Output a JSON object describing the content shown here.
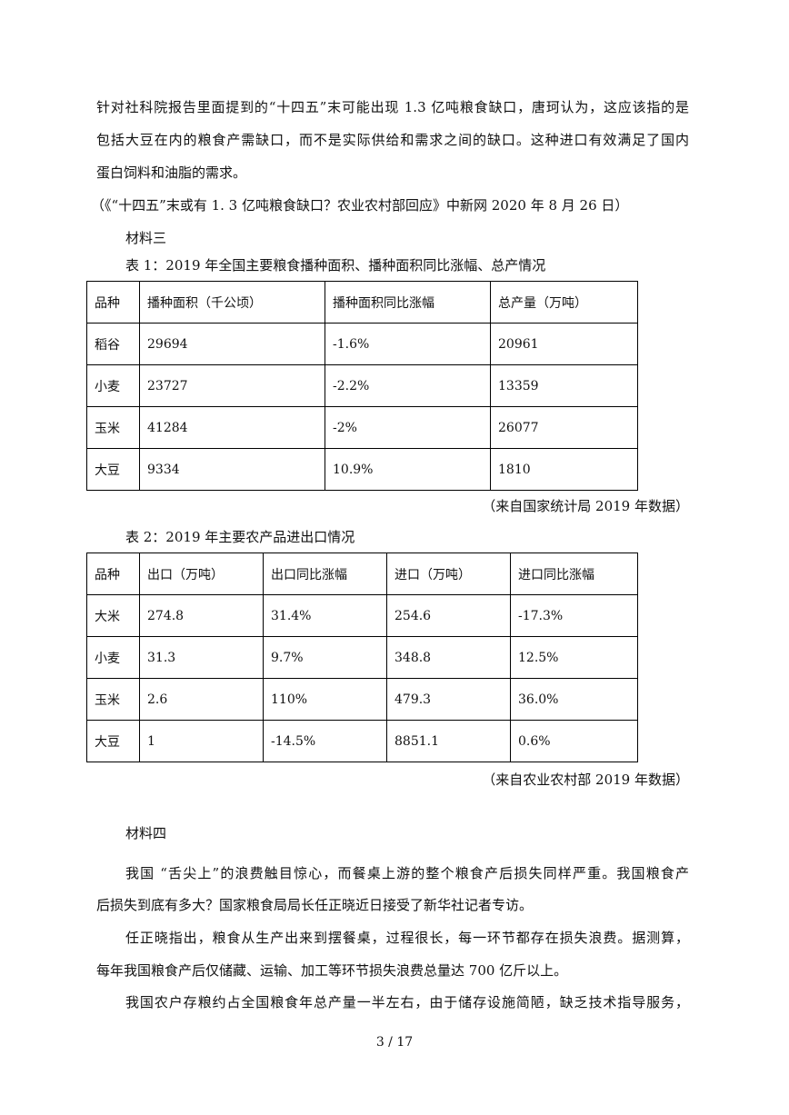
{
  "material2": {
    "lines": [
      "针对社科院报告里面提到的“十四五”末可能出现 1.3 亿吨粮食缺口，唐珂认为，这应该指的是",
      "包括大豆在内的粮食产需缺口，而不是实际供给和需求之间的缺口。这种进口有效满足了国内",
      "蛋白饲料和油脂的需求。"
    ],
    "citation": "（《“十四五”末或有 1. 3 亿吨粮食缺口？农业农村部回应》中新网 2020 年 8 月 26 日）"
  },
  "material3": {
    "heading": "材料三",
    "table1": {
      "caption": "表 1：2019 年全国主要粮食播种面积、播种面积同比涨幅、总产情况",
      "headers": [
        "品种",
        "播种面积（千公顷）",
        "播种面积同比涨幅",
        "总产量（万吨）"
      ],
      "rows": [
        [
          "稻谷",
          "29694",
          "-1.6%",
          "20961"
        ],
        [
          "小麦",
          "23727",
          "-2.2%",
          "13359"
        ],
        [
          "玉米",
          "41284",
          "-2%",
          "26077"
        ],
        [
          "大豆",
          "9334",
          "10.9%",
          "1810"
        ]
      ],
      "source": "（来自国家统计局 2019 年数据）"
    },
    "table2": {
      "caption": "表 2：2019  年主要农产品进出口情况",
      "headers": [
        "品种",
        "出口（万吨）",
        "出口同比涨幅",
        "进口（万吨）",
        "进口同比涨幅"
      ],
      "rows": [
        [
          "大米",
          "274.8",
          "31.4%",
          "254.6",
          "-17.3%"
        ],
        [
          "小麦",
          "31.3",
          "9.7%",
          "348.8",
          "12.5%"
        ],
        [
          "玉米",
          "2.6",
          "110%",
          "479.3",
          "36.0%"
        ],
        [
          "大豆",
          "1",
          "-14.5%",
          "8851.1",
          "0.6%"
        ]
      ],
      "source": "（来自农业农村部 2019 年数据）"
    }
  },
  "material4": {
    "heading": "材料四",
    "lines": [
      "我国 “舌尖上”的浪费触目惊心，而餐桌上游的整个粮食产后损失同样严重。我国粮食产",
      "后损失到底有多大？国家粮食局局长任正晓近日接受了新华社记者专访。",
      "任正晓指出，粮食从生产出来到摆餐桌，过程很长，每一环节都存在损失浪费。据测算，",
      "每年我国粮食产后仅储藏、运输、加工等环节损失浪费总量达 700 亿斤以上。",
      "我国农户存粮约占全国粮食年总产量一半左右，由于储存设施简陋，缺乏技术指导服务，"
    ]
  },
  "page_number": "3  / 17"
}
